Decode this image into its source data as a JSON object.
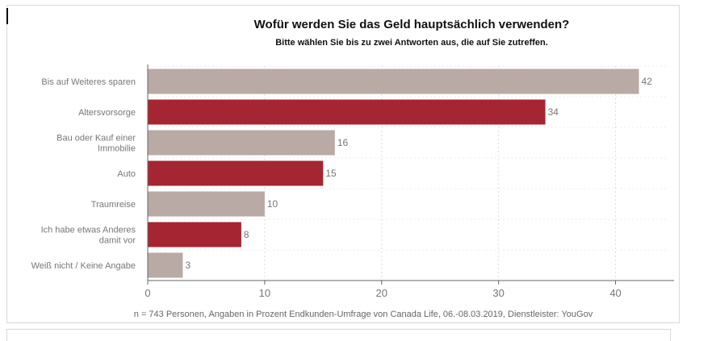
{
  "title": "Wofür werden Sie das Geld hauptsächlich verwenden?",
  "subtitle": "Bitte wählen Sie bis zu zwei Antworten aus, die auf Sie zutreffen.",
  "footnote": "n = 743 Personen, Angaben in Prozent Endkunden-Umfrage von Canada Life, 06.-08.03.2019, Dienstleister: YouGov",
  "colors": {
    "gray": "#b9aaa5",
    "red": "#a52632",
    "axis": "#666666",
    "grid": "#dddddd",
    "text": "#777777"
  },
  "chart_data": {
    "type": "bar",
    "orientation": "horizontal",
    "categories": [
      [
        "Bis auf Weiteres sparen"
      ],
      [
        "Altersvorsorge"
      ],
      [
        "Bau oder Kauf einer",
        "Immobilie"
      ],
      [
        "Auto"
      ],
      [
        "Traumreise"
      ],
      [
        "Ich habe etwas Anderes",
        "damit vor"
      ],
      [
        "Weiß nicht / Keine Angabe"
      ]
    ],
    "values": [
      42,
      34,
      16,
      15,
      10,
      8,
      3
    ],
    "bar_colors": [
      "gray",
      "red",
      "gray",
      "red",
      "gray",
      "red",
      "gray"
    ],
    "xticks": [
      0,
      10,
      20,
      30,
      40
    ],
    "xlim": [
      0,
      45
    ],
    "grid": true
  }
}
